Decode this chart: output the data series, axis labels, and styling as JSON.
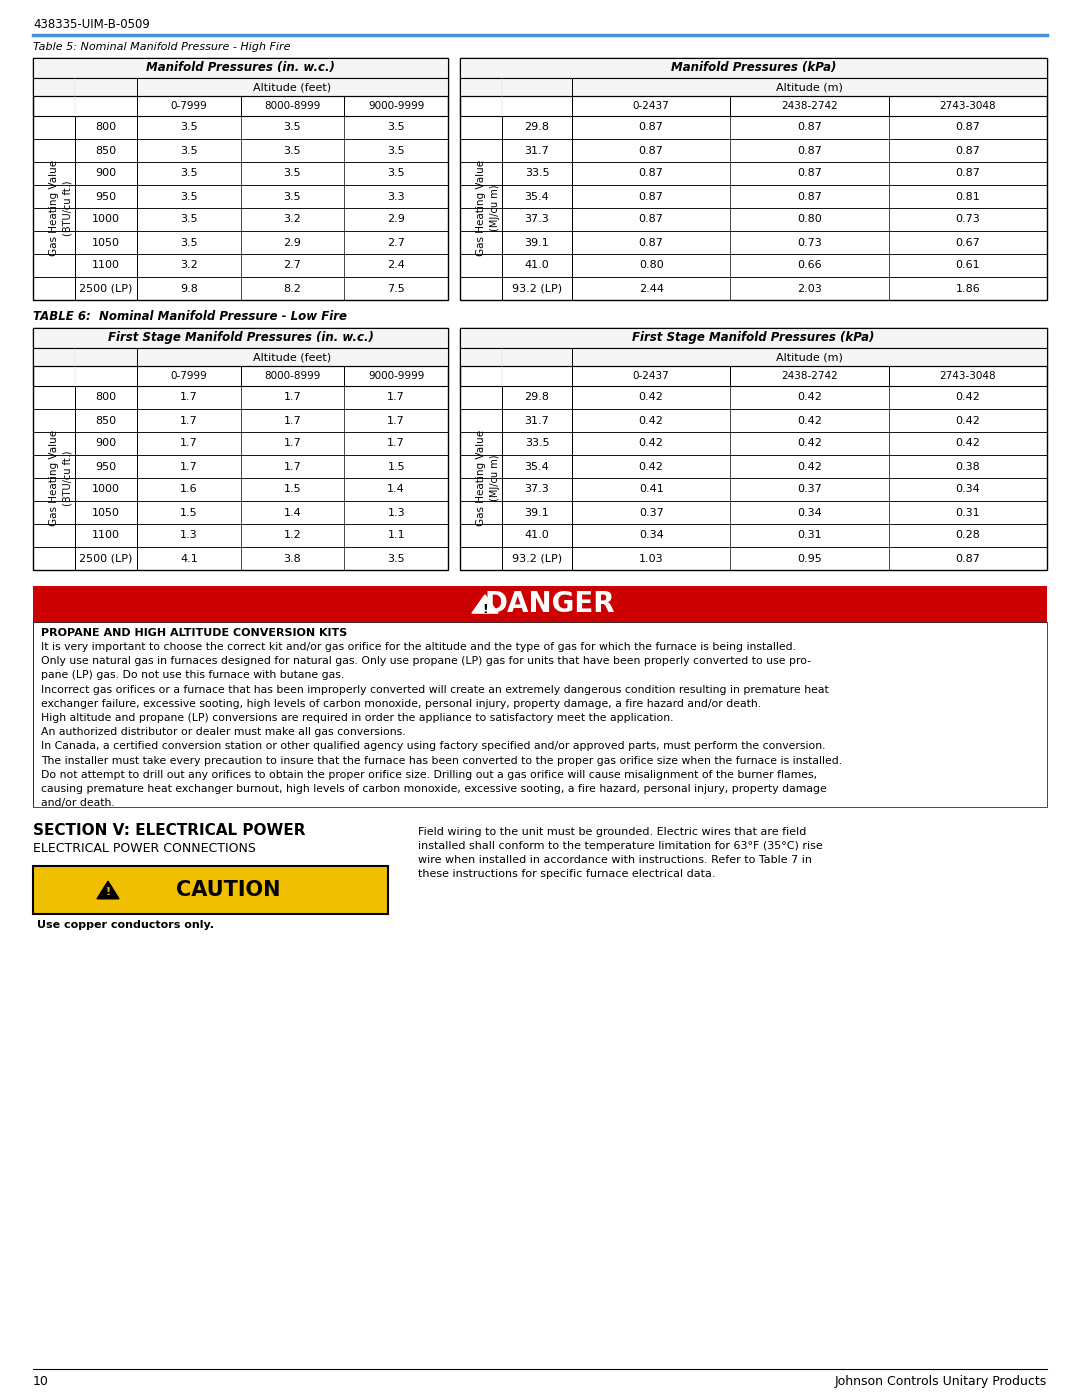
{
  "header_text": "438335-UIM-B-0509",
  "table5_title": "Table 5: Nominal Manifold Pressure - High Fire",
  "table5_left_header": "Manifold Pressures (in. w.c.)",
  "table5_right_header": "Manifold Pressures (kPa)",
  "alt_feet": "Altitude (feet)",
  "alt_m": "Altitude (m)",
  "left_cols": [
    "0-7999",
    "8000-8999",
    "9000-9999"
  ],
  "right_cols": [
    "0-2437",
    "2438-2742",
    "2743-3048"
  ],
  "t5_rows_btu": [
    "800",
    "850",
    "900",
    "950",
    "1000",
    "1050",
    "1100",
    "2500 (LP)"
  ],
  "t5_rows_mj": [
    "29.8",
    "31.7",
    "33.5",
    "35.4",
    "37.3",
    "39.1",
    "41.0",
    "93.2 (LP)"
  ],
  "t5_left_data": [
    [
      "3.5",
      "3.5",
      "3.5"
    ],
    [
      "3.5",
      "3.5",
      "3.5"
    ],
    [
      "3.5",
      "3.5",
      "3.5"
    ],
    [
      "3.5",
      "3.5",
      "3.3"
    ],
    [
      "3.5",
      "3.2",
      "2.9"
    ],
    [
      "3.5",
      "2.9",
      "2.7"
    ],
    [
      "3.2",
      "2.7",
      "2.4"
    ],
    [
      "9.8",
      "8.2",
      "7.5"
    ]
  ],
  "t5_right_data": [
    [
      "0.87",
      "0.87",
      "0.87"
    ],
    [
      "0.87",
      "0.87",
      "0.87"
    ],
    [
      "0.87",
      "0.87",
      "0.87"
    ],
    [
      "0.87",
      "0.87",
      "0.81"
    ],
    [
      "0.87",
      "0.80",
      "0.73"
    ],
    [
      "0.87",
      "0.73",
      "0.67"
    ],
    [
      "0.80",
      "0.66",
      "0.61"
    ],
    [
      "2.44",
      "2.03",
      "1.86"
    ]
  ],
  "table6_title": "TABLE 6:  Nominal Manifold Pressure - Low Fire",
  "table6_left_header": "First Stage Manifold Pressures (in. w.c.)",
  "table6_right_header": "First Stage Manifold Pressures (kPa)",
  "t6_rows_btu": [
    "800",
    "850",
    "900",
    "950",
    "1000",
    "1050",
    "1100",
    "2500 (LP)"
  ],
  "t6_rows_mj": [
    "29.8",
    "31.7",
    "33.5",
    "35.4",
    "37.3",
    "39.1",
    "41.0",
    "93.2 (LP)"
  ],
  "t6_left_data": [
    [
      "1.7",
      "1.7",
      "1.7"
    ],
    [
      "1.7",
      "1.7",
      "1.7"
    ],
    [
      "1.7",
      "1.7",
      "1.7"
    ],
    [
      "1.7",
      "1.7",
      "1.5"
    ],
    [
      "1.6",
      "1.5",
      "1.4"
    ],
    [
      "1.5",
      "1.4",
      "1.3"
    ],
    [
      "1.3",
      "1.2",
      "1.1"
    ],
    [
      "4.1",
      "3.8",
      "3.5"
    ]
  ],
  "t6_right_data": [
    [
      "0.42",
      "0.42",
      "0.42"
    ],
    [
      "0.42",
      "0.42",
      "0.42"
    ],
    [
      "0.42",
      "0.42",
      "0.42"
    ],
    [
      "0.42",
      "0.42",
      "0.38"
    ],
    [
      "0.41",
      "0.37",
      "0.34"
    ],
    [
      "0.37",
      "0.34",
      "0.31"
    ],
    [
      "0.34",
      "0.31",
      "0.28"
    ],
    [
      "1.03",
      "0.95",
      "0.87"
    ]
  ],
  "danger_title": "DANGER",
  "danger_subtitle": "PROPANE AND HIGH ALTITUDE CONVERSION KITS",
  "danger_lines": [
    "It is very important to choose the correct kit and/or gas orifice for the altitude and the type of gas for which the furnace is being installed.",
    "Only use natural gas in furnaces designed for natural gas. Only use propane (LP) gas for units that have been properly converted to use pro-",
    "pane (LP) gas. Do not use this furnace with butane gas.",
    "Incorrect gas orifices or a furnace that has been improperly converted will create an extremely dangerous condition resulting in premature heat",
    "exchanger failure, excessive sooting, high levels of carbon monoxide, personal injury, property damage, a fire hazard and/or death.",
    "High altitude and propane (LP) conversions are required in order the appliance to satisfactory meet the application.",
    "An authorized distributor or dealer must make all gas conversions.",
    "In Canada, a certified conversion station or other qualified agency using factory specified and/or approved parts, must perform the conversion.",
    "The installer must take every precaution to insure that the furnace has been converted to the proper gas orifice size when the furnace is installed.",
    "Do not attempt to drill out any orifices to obtain the proper orifice size. Drilling out a gas orifice will cause misalignment of the burner flames,",
    "causing premature heat exchanger burnout, high levels of carbon monoxide, excessive sooting, a fire hazard, personal injury, property damage",
    "and/or death."
  ],
  "section_title": "SECTION V: ELECTRICAL POWER",
  "section_subtitle": "ELECTRICAL POWER CONNECTIONS",
  "caution_text": "CAUTION",
  "caution_sub": "Use copper conductors only.",
  "field_wiring_lines": [
    "Field wiring to the unit must be grounded. Electric wires that are field",
    "installed shall conform to the temperature limitation for 63°F (35°C) rise",
    "wire when installed in accordance with instructions. Refer to Table 7 in",
    "these instructions for specific furnace electrical data."
  ],
  "footer_page": "10",
  "footer_company": "Johnson Controls Unitary Products",
  "blue_color": "#4a90d9",
  "red_color": "#cc0000",
  "yellow_color": "#f0c000",
  "bg_color": "#ffffff",
  "table_bg": "#f5f5f5"
}
